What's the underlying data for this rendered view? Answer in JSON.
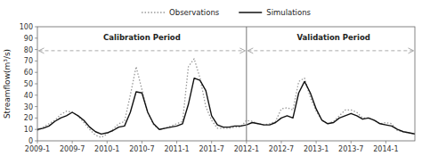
{
  "chart_data": {
    "type": "line",
    "title": "",
    "ylabel": "Streamflow(m³/s)",
    "background_color": "#ffffff",
    "categories": [
      "2009-1",
      null,
      null,
      null,
      null,
      null,
      "2009-7",
      null,
      null,
      null,
      null,
      null,
      "2010-1",
      null,
      null,
      null,
      null,
      null,
      "2010-7",
      null,
      null,
      null,
      null,
      null,
      "2011-1",
      null,
      null,
      null,
      null,
      null,
      "2011-7",
      null,
      null,
      null,
      null,
      null,
      "2012-1",
      null,
      null,
      null,
      null,
      null,
      "2012-7",
      null,
      null,
      null,
      null,
      null,
      "2013-1",
      null,
      null,
      null,
      null,
      null,
      "2013-7",
      null,
      null,
      null,
      null,
      null,
      "2014-1",
      null,
      null,
      null,
      null,
      null
    ],
    "series": [
      {
        "name": "Observations",
        "color": "#999999",
        "line_style": "dotted",
        "values": [
          9,
          12,
          15,
          18,
          23,
          26,
          25,
          22,
          16,
          10,
          5,
          3,
          6,
          10,
          15,
          17,
          40,
          65,
          45,
          25,
          14,
          10,
          11,
          13,
          15,
          17,
          65,
          72,
          55,
          30,
          18,
          11,
          11,
          11,
          12,
          12,
          18,
          17,
          15,
          14,
          15,
          17,
          28,
          29,
          27,
          52,
          55,
          38,
          26,
          18,
          15,
          17,
          22,
          27,
          27,
          25,
          20,
          20,
          18,
          15,
          16,
          15,
          9,
          8,
          7,
          6
        ]
      },
      {
        "name": "Simulations",
        "color": "#111111",
        "line_style": "solid",
        "values": [
          10,
          11,
          13,
          17,
          20,
          22,
          25,
          22,
          18,
          12,
          8,
          6,
          7,
          9,
          12,
          13,
          25,
          43,
          42,
          25,
          15,
          10,
          11,
          12,
          13,
          15,
          32,
          55,
          53,
          44,
          22,
          14,
          12,
          12,
          13,
          13,
          14,
          16,
          15,
          14,
          14,
          16,
          20,
          22,
          20,
          42,
          52,
          42,
          28,
          18,
          15,
          16,
          20,
          22,
          24,
          22,
          19,
          20,
          18,
          15,
          14,
          13,
          10,
          8,
          7,
          6
        ]
      }
    ],
    "ylim": [
      0,
      100
    ],
    "yticks": [
      0,
      10,
      20,
      30,
      40,
      50,
      60,
      70,
      80,
      90,
      100
    ],
    "grid": false,
    "legend": "top",
    "divider": {
      "x": 36,
      "color": "#777777"
    },
    "arrows": [
      {
        "from": 0,
        "to": 36,
        "y": 79,
        "color": "#aaaaaa"
      },
      {
        "from": 36,
        "to": 65,
        "y": 79,
        "color": "#aaaaaa"
      }
    ],
    "annotations": [
      {
        "text": "Calibration Period",
        "x": 18,
        "y": 91
      },
      {
        "text": "Validation Period",
        "x": 51,
        "y": 91
      }
    ]
  }
}
